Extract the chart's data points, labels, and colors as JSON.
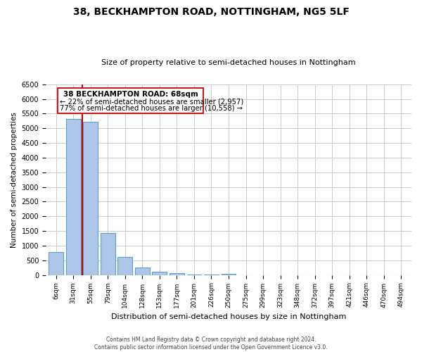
{
  "title": "38, BECKHAMPTON ROAD, NOTTINGHAM, NG5 5LF",
  "subtitle": "Size of property relative to semi-detached houses in Nottingham",
  "xlabel": "Distribution of semi-detached houses by size in Nottingham",
  "ylabel": "Number of semi-detached properties",
  "bin_labels": [
    "6sqm",
    "31sqm",
    "55sqm",
    "79sqm",
    "104sqm",
    "128sqm",
    "153sqm",
    "177sqm",
    "201sqm",
    "226sqm",
    "250sqm",
    "275sqm",
    "299sqm",
    "323sqm",
    "348sqm",
    "372sqm",
    "397sqm",
    "421sqm",
    "446sqm",
    "470sqm",
    "494sqm"
  ],
  "bar_heights": [
    780,
    5330,
    5220,
    1420,
    620,
    265,
    115,
    50,
    10,
    5,
    35,
    0,
    0,
    0,
    0,
    0,
    0,
    0,
    0,
    0,
    0
  ],
  "bar_color": "#aec6e8",
  "bar_edgecolor": "#5a9fd4",
  "vline_x": 1.5,
  "vline_color": "#cc0000",
  "annotation_title": "38 BECKHAMPTON ROAD: 68sqm",
  "annotation_line1": "← 22% of semi-detached houses are smaller (2,957)",
  "annotation_line2": "77% of semi-detached houses are larger (10,558) →",
  "annotation_box_edgecolor": "#cc0000",
  "ylim": [
    0,
    6500
  ],
  "yticks": [
    0,
    500,
    1000,
    1500,
    2000,
    2500,
    3000,
    3500,
    4000,
    4500,
    5000,
    5500,
    6000,
    6500
  ],
  "footer_line1": "Contains HM Land Registry data © Crown copyright and database right 2024.",
  "footer_line2": "Contains public sector information licensed under the Open Government Licence v3.0.",
  "background_color": "#ffffff",
  "grid_color": "#cccccc"
}
